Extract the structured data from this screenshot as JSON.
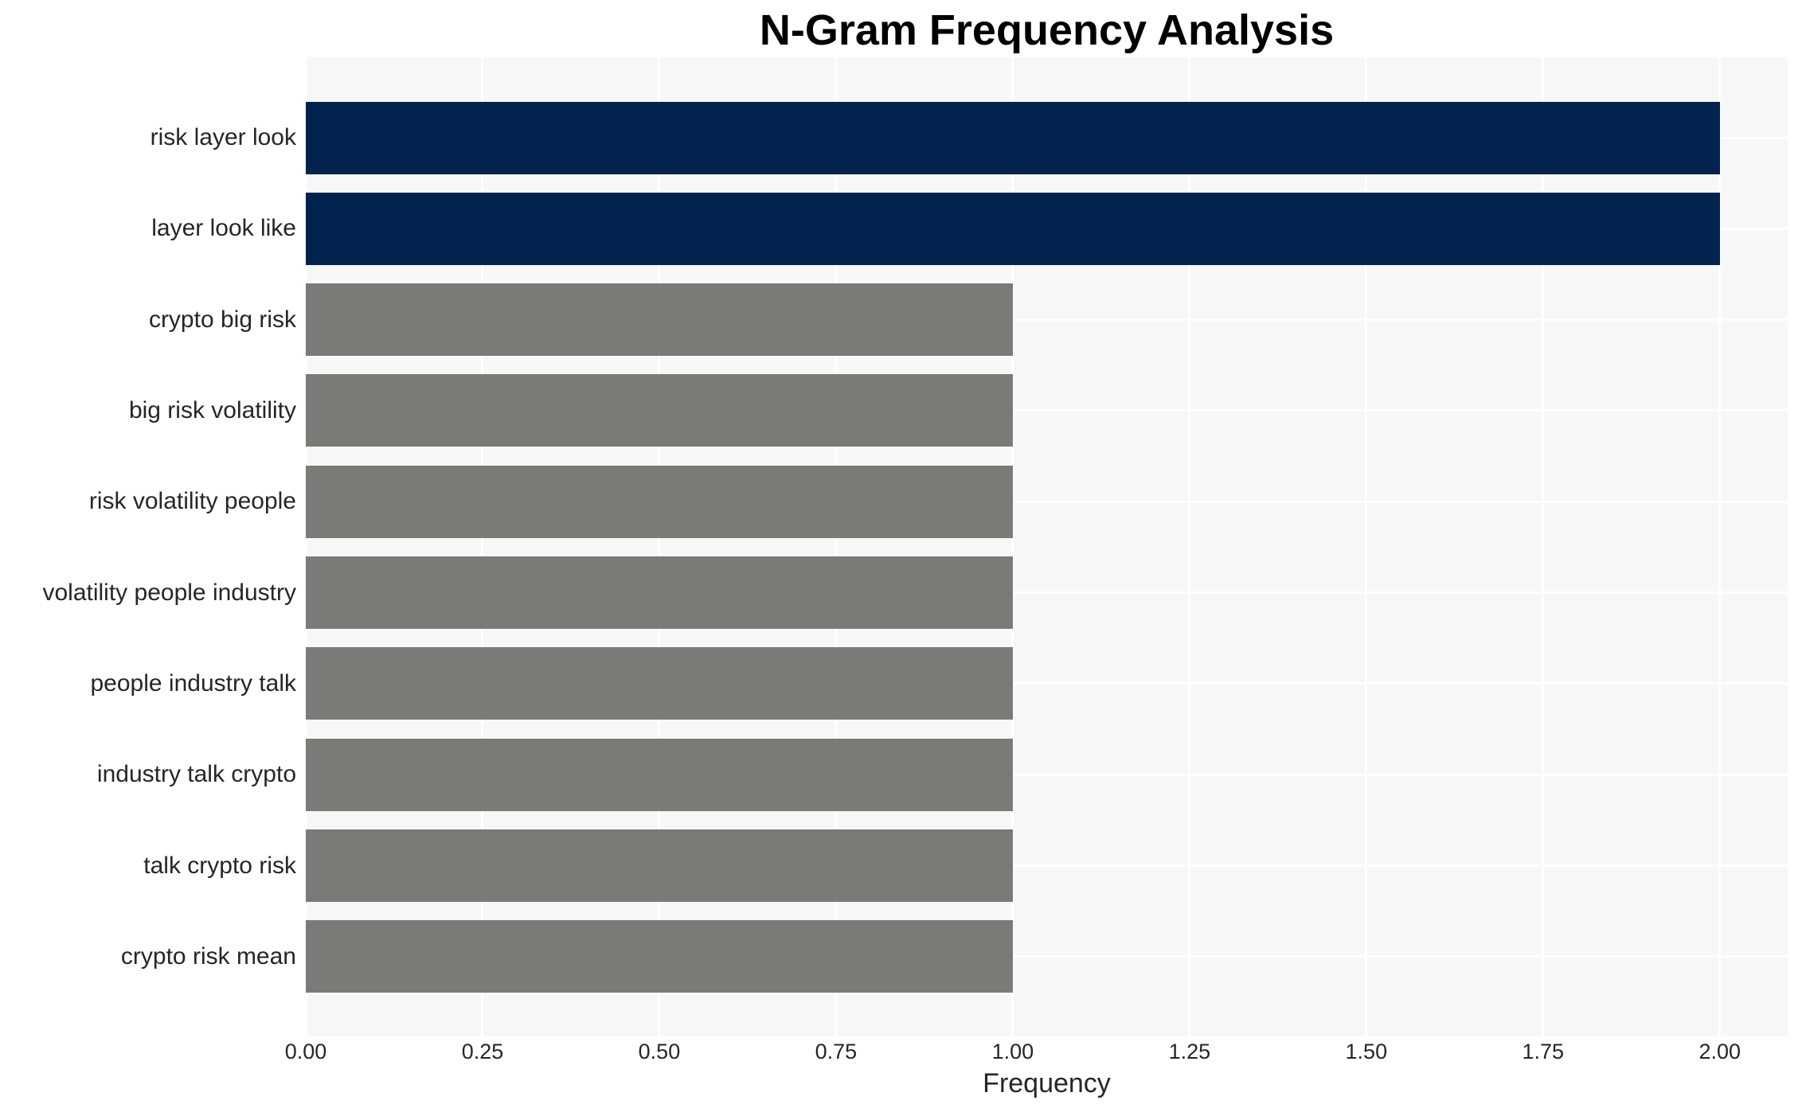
{
  "chart_data": {
    "type": "bar",
    "orientation": "horizontal",
    "title": "N-Gram Frequency Analysis",
    "xlabel": "Frequency",
    "ylabel": "",
    "categories": [
      "risk layer look",
      "layer look like",
      "crypto big risk",
      "big risk volatility",
      "risk volatility people",
      "volatility people industry",
      "people industry talk",
      "industry talk crypto",
      "talk crypto risk",
      "crypto risk mean"
    ],
    "values": [
      2,
      2,
      1,
      1,
      1,
      1,
      1,
      1,
      1,
      1
    ],
    "bar_colors": [
      "#02234e",
      "#02234e",
      "#7b7a76",
      "#7b7a76",
      "#7b7a76",
      "#7b7a76",
      "#7b7a76",
      "#7b7a76",
      "#7b7a76",
      "#7b7a76"
    ],
    "xlim": [
      0,
      2.096
    ],
    "xticks": [
      {
        "value": 0.0,
        "label": "0.00"
      },
      {
        "value": 0.25,
        "label": "0.25"
      },
      {
        "value": 0.5,
        "label": "0.50"
      },
      {
        "value": 0.75,
        "label": "0.75"
      },
      {
        "value": 1.0,
        "label": "1.00"
      },
      {
        "value": 1.25,
        "label": "1.25"
      },
      {
        "value": 1.5,
        "label": "1.50"
      },
      {
        "value": 1.75,
        "label": "1.75"
      },
      {
        "value": 2.0,
        "label": "2.00"
      }
    ],
    "grid": true,
    "legend": false,
    "colors": {
      "highlight_bar": "#02234e",
      "default_bar": "#7b7a76",
      "plot_background": "#f7f7f7",
      "grid_line": "#ffffff",
      "tick_text": "#262626",
      "title_text": "#000000"
    }
  }
}
